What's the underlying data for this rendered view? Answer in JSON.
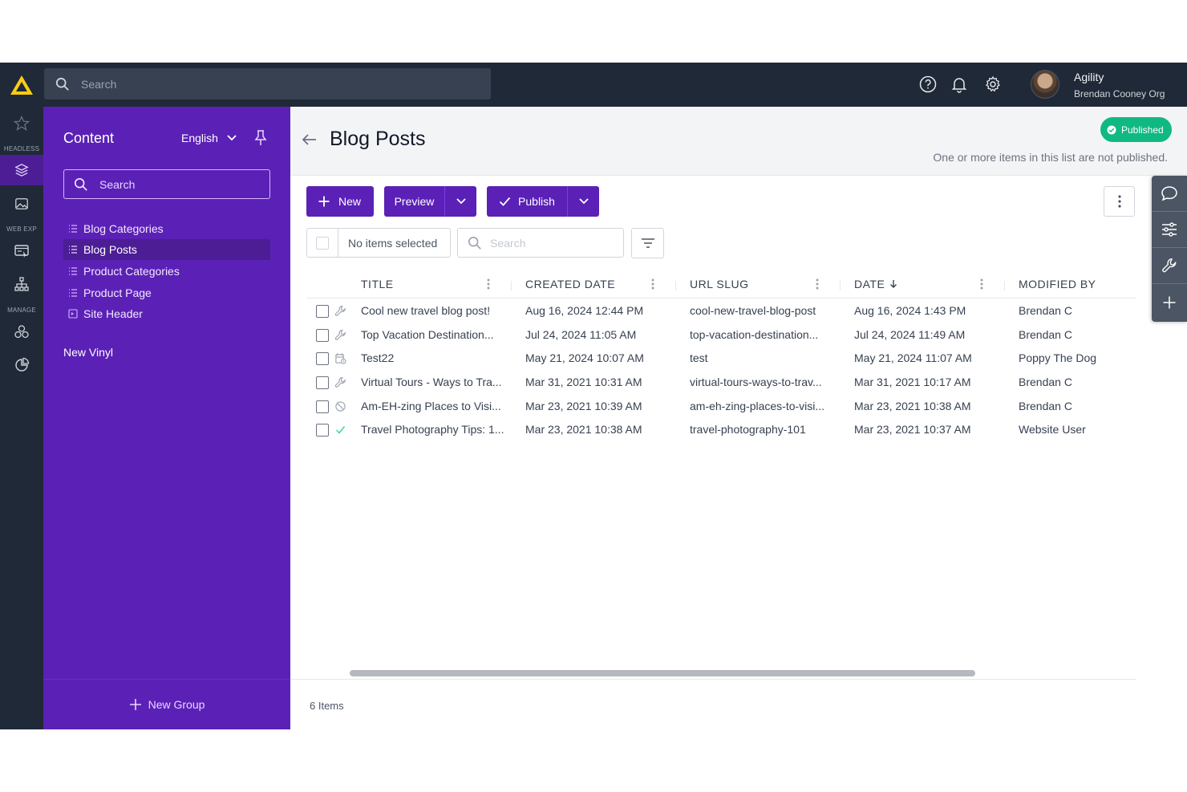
{
  "topbar": {
    "search_placeholder": "Search",
    "org_name": "Agility",
    "org_sub": "Brendan Cooney Org"
  },
  "rail": {
    "headless_label": "HEADLESS",
    "webexp_label": "WEB EXP",
    "manage_label": "MANAGE"
  },
  "sidebar": {
    "title": "Content",
    "language": "English",
    "search_placeholder": "Search",
    "items": [
      {
        "label": "Blog Categories",
        "icon": "list-icon"
      },
      {
        "label": "Blog Posts",
        "icon": "list-icon",
        "active": true
      },
      {
        "label": "Product Categories",
        "icon": "list-icon"
      },
      {
        "label": "Product Page",
        "icon": "list-icon"
      },
      {
        "label": "Site Header",
        "icon": "component-icon"
      }
    ],
    "group_label": "New Vinyl",
    "new_group_label": "New Group"
  },
  "main": {
    "title": "Blog Posts",
    "status_badge": "Published",
    "status_note": "One or more items in this list are not published.",
    "toolbar": {
      "new_label": "New",
      "preview_label": "Preview",
      "publish_label": "Publish"
    },
    "selection_text": "No items selected",
    "list_search_placeholder": "Search",
    "columns": [
      "TITLE",
      "CREATED DATE",
      "URL SLUG",
      "DATE",
      "MODIFIED BY"
    ],
    "rows": [
      {
        "status": "wrench",
        "title": "Cool new travel blog post!",
        "created": "Aug 16, 2024 12:44 PM",
        "slug": "cool-new-travel-blog-post",
        "date": "Aug 16, 2024 1:43 PM",
        "modified_by": "Brendan C"
      },
      {
        "status": "wrench",
        "title": "Top Vacation Destination...",
        "created": "Jul 24, 2024 11:05 AM",
        "slug": "top-vacation-destination...",
        "date": "Jul 24, 2024 11:49 AM",
        "modified_by": "Brendan C"
      },
      {
        "status": "scheduled",
        "title": "Test22",
        "created": "May 21, 2024 10:07 AM",
        "slug": "test",
        "date": "May 21, 2024 11:07 AM",
        "modified_by": "Poppy The Dog"
      },
      {
        "status": "wrench",
        "title": "Virtual Tours - Ways to Tra...",
        "created": "Mar 31, 2021 10:31 AM",
        "slug": "virtual-tours-ways-to-trav...",
        "date": "Mar 31, 2021 10:17 AM",
        "modified_by": "Brendan C"
      },
      {
        "status": "unpublished",
        "title": "Am-EH-zing Places to Visi...",
        "created": "Mar 23, 2021 10:39 AM",
        "slug": "am-eh-zing-places-to-visi...",
        "date": "Mar 23, 2021 10:38 AM",
        "modified_by": "Brendan C"
      },
      {
        "status": "published",
        "title": "Travel Photography Tips: 1...",
        "created": "Mar 23, 2021 10:38 AM",
        "slug": "travel-photography-101",
        "date": "Mar 23, 2021 10:37 AM",
        "modified_by": "Website User"
      }
    ],
    "item_count": "6 Items"
  },
  "colors": {
    "topbar": "#1f2937",
    "sidebar": "#5b21b6",
    "accent": "#5b21b6",
    "published": "#10b981",
    "logo": "#facc15"
  }
}
